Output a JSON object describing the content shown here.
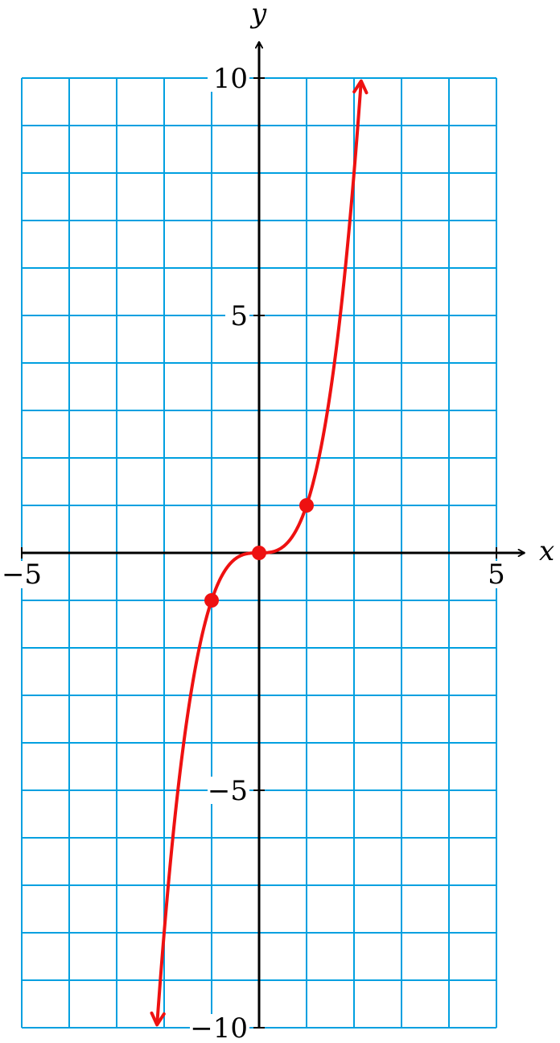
{
  "chart_data": {
    "type": "line",
    "title": "",
    "xlabel": "x",
    "ylabel": "y",
    "xlim": [
      -5,
      5
    ],
    "ylim": [
      -10,
      10
    ],
    "grid": true,
    "x_ticks": [
      {
        "value": -5,
        "label": "−5"
      },
      {
        "value": 5,
        "label": "5"
      }
    ],
    "y_ticks": [
      {
        "value": 10,
        "label": "10"
      },
      {
        "value": 5,
        "label": "5"
      },
      {
        "value": -5,
        "label": "−5"
      },
      {
        "value": -10,
        "label": "−10"
      }
    ],
    "series": [
      {
        "function": "y = x^3",
        "x_range": [
          -2.15,
          2.15
        ],
        "arrows_both_ends": true,
        "points": [
          {
            "x": -1,
            "y": -1
          },
          {
            "x": 0,
            "y": 0
          },
          {
            "x": 1,
            "y": 1
          }
        ]
      }
    ]
  },
  "colors": {
    "grid": "#00a0e0",
    "axis": "#000000",
    "curve": "#ee1111"
  }
}
